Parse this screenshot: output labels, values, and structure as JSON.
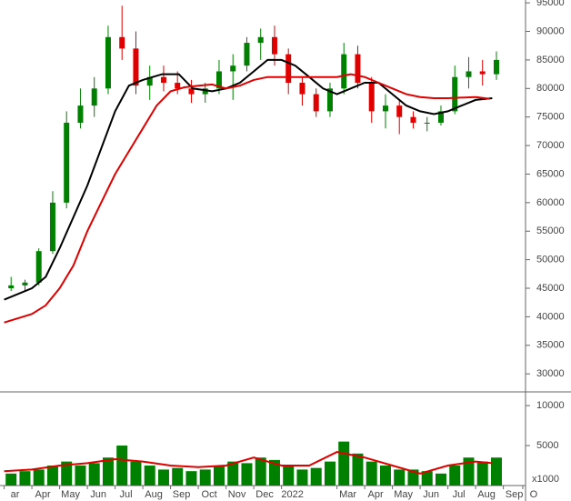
{
  "chart_data": [
    {
      "type": "candlestick",
      "xlim": [
        -0.15,
        18.8
      ],
      "ylim": [
        27000,
        95500
      ],
      "yticks": [
        30000,
        35000,
        40000,
        45000,
        50000,
        55000,
        60000,
        65000,
        70000,
        75000,
        80000,
        85000,
        90000,
        95000
      ],
      "up_color": "#008000",
      "down_color": "#e00000",
      "x": [
        0.25,
        0.75,
        1.25,
        1.75,
        2.25,
        2.75,
        3.25,
        3.75,
        4.25,
        4.75,
        5.25,
        5.75,
        6.25,
        6.75,
        7.25,
        7.75,
        8.25,
        8.75,
        9.25,
        9.75,
        10.25,
        10.75,
        11.25,
        11.75,
        12.25,
        12.75,
        13.25,
        13.75,
        14.25,
        14.75,
        15.25,
        15.75,
        16.25,
        16.75,
        17.25,
        17.75
      ],
      "open": [
        45000,
        45500,
        46000,
        51500,
        60000,
        74000,
        77000,
        80000,
        89000,
        87000,
        80500,
        82000,
        81000,
        80000,
        79000,
        80000,
        83000,
        84000,
        88000,
        89000,
        86000,
        81000,
        79000,
        76000,
        80000,
        86000,
        81000,
        76000,
        77000,
        75000,
        74000,
        74000,
        76000,
        82000,
        83000,
        82500
      ],
      "high": [
        47000,
        46500,
        52000,
        62000,
        76000,
        80000,
        82000,
        91000,
        94500,
        90000,
        84000,
        84000,
        83000,
        81500,
        81000,
        85000,
        86000,
        89000,
        90500,
        91000,
        87000,
        82000,
        80000,
        81000,
        88000,
        87500,
        82000,
        79000,
        78000,
        76000,
        75000,
        77000,
        84000,
        85500,
        85000,
        86500
      ],
      "low": [
        44500,
        44500,
        45500,
        51000,
        59000,
        73000,
        75000,
        79000,
        85000,
        79000,
        78000,
        79500,
        79000,
        77500,
        77500,
        79000,
        78000,
        83000,
        85000,
        84000,
        79000,
        77000,
        75000,
        75000,
        79000,
        80000,
        74000,
        73000,
        72000,
        73000,
        72500,
        73500,
        75500,
        80000,
        80500,
        81500
      ],
      "close": [
        45500,
        46000,
        51500,
        60000,
        74000,
        77000,
        80000,
        89000,
        87000,
        80500,
        82000,
        81000,
        80000,
        79000,
        80000,
        83000,
        84000,
        88000,
        89000,
        86000,
        81000,
        79000,
        76000,
        80000,
        86000,
        81000,
        76000,
        77000,
        75000,
        74000,
        74000,
        76000,
        82000,
        83000,
        82500,
        85000
      ],
      "series": [
        {
          "color": "#000000",
          "x": [
            0,
            1,
            1.5,
            2,
            3,
            4,
            4.5,
            5,
            5.7,
            6.3,
            6.8,
            7.5,
            8,
            8.5,
            9,
            9.5,
            10,
            10.5,
            11,
            11.5,
            12,
            12.5,
            13,
            13.5,
            14,
            14.5,
            15,
            15.5,
            16,
            16.5,
            17,
            17.6
          ],
          "values": [
            43000,
            45000,
            47000,
            52000,
            63000,
            76000,
            80500,
            81500,
            82500,
            82500,
            80000,
            79500,
            80000,
            81000,
            83000,
            85000,
            85000,
            84000,
            82000,
            80000,
            79000,
            80000,
            81000,
            81000,
            79000,
            77000,
            76000,
            75500,
            76000,
            77000,
            78000,
            78300
          ]
        },
        {
          "color": "#e00000",
          "x": [
            0,
            1,
            1.5,
            2,
            2.5,
            3,
            3.5,
            4,
            4.5,
            5,
            5.5,
            6,
            6.5,
            7,
            7.5,
            8,
            8.5,
            9,
            9.5,
            10,
            11,
            12,
            12.5,
            13,
            13.5,
            14,
            14.5,
            15,
            15.5,
            16,
            17,
            17.5
          ],
          "values": [
            39000,
            40500,
            42000,
            45000,
            49000,
            55000,
            60000,
            65000,
            69000,
            73000,
            77000,
            79500,
            80200,
            80500,
            80700,
            80000,
            80500,
            81500,
            82000,
            82000,
            82000,
            82000,
            82500,
            82000,
            81000,
            80000,
            79000,
            78500,
            78300,
            78300,
            78500,
            78200
          ]
        }
      ]
    },
    {
      "type": "bar",
      "xlim": [
        -0.15,
        18.8
      ],
      "ylim": [
        0,
        11600
      ],
      "yticks": [
        5000,
        10000
      ],
      "unit_label": "x1000",
      "color": "#008000",
      "xticks": [
        {
          "value": 0,
          "label": "ar"
        },
        {
          "value": 1,
          "label": "Apr"
        },
        {
          "value": 2,
          "label": "May"
        },
        {
          "value": 3,
          "label": "Jun"
        },
        {
          "value": 4,
          "label": "Jul"
        },
        {
          "value": 5,
          "label": "Aug"
        },
        {
          "value": 6,
          "label": "Sep"
        },
        {
          "value": 7,
          "label": "Oct"
        },
        {
          "value": 8,
          "label": "Nov"
        },
        {
          "value": 9,
          "label": "Dec"
        },
        {
          "value": 10,
          "label": "2022"
        },
        {
          "value": 12,
          "label": "Mar"
        },
        {
          "value": 13,
          "label": "Apr"
        },
        {
          "value": 14,
          "label": "May"
        },
        {
          "value": 15,
          "label": "Jun"
        },
        {
          "value": 16,
          "label": "Jul"
        },
        {
          "value": 17,
          "label": "Aug"
        },
        {
          "value": 18,
          "label": "Sep"
        },
        {
          "value": 18.7,
          "label": "O"
        }
      ],
      "x": [
        0.25,
        0.75,
        1.25,
        1.75,
        2.25,
        2.75,
        3.25,
        3.75,
        4.25,
        4.75,
        5.25,
        5.75,
        6.25,
        6.75,
        7.25,
        7.75,
        8.25,
        8.75,
        9.25,
        9.75,
        10.25,
        10.75,
        11.25,
        11.75,
        12.25,
        12.75,
        13.25,
        13.75,
        14.25,
        14.75,
        15.25,
        15.75,
        16.25,
        16.75,
        17.25,
        17.75
      ],
      "values": [
        1500,
        1800,
        2000,
        2500,
        3000,
        2500,
        2800,
        3500,
        5000,
        3000,
        2500,
        2000,
        2200,
        1800,
        2000,
        2500,
        3000,
        2800,
        3500,
        3200,
        2500,
        2000,
        2200,
        3000,
        5500,
        4000,
        3000,
        2500,
        2000,
        2000,
        1800,
        1500,
        2500,
        3500,
        3000,
        3500
      ],
      "series": [
        {
          "color": "#e00000",
          "x": [
            0,
            1,
            2,
            3,
            4,
            5,
            6,
            7,
            8,
            9,
            10,
            11,
            12,
            13,
            14,
            15,
            16,
            17,
            17.6
          ],
          "values": [
            1800,
            2000,
            2500,
            2800,
            3300,
            3000,
            2500,
            2300,
            2500,
            3500,
            2500,
            2500,
            4200,
            3500,
            2500,
            1500,
            2500,
            3000,
            2800
          ]
        }
      ]
    }
  ]
}
